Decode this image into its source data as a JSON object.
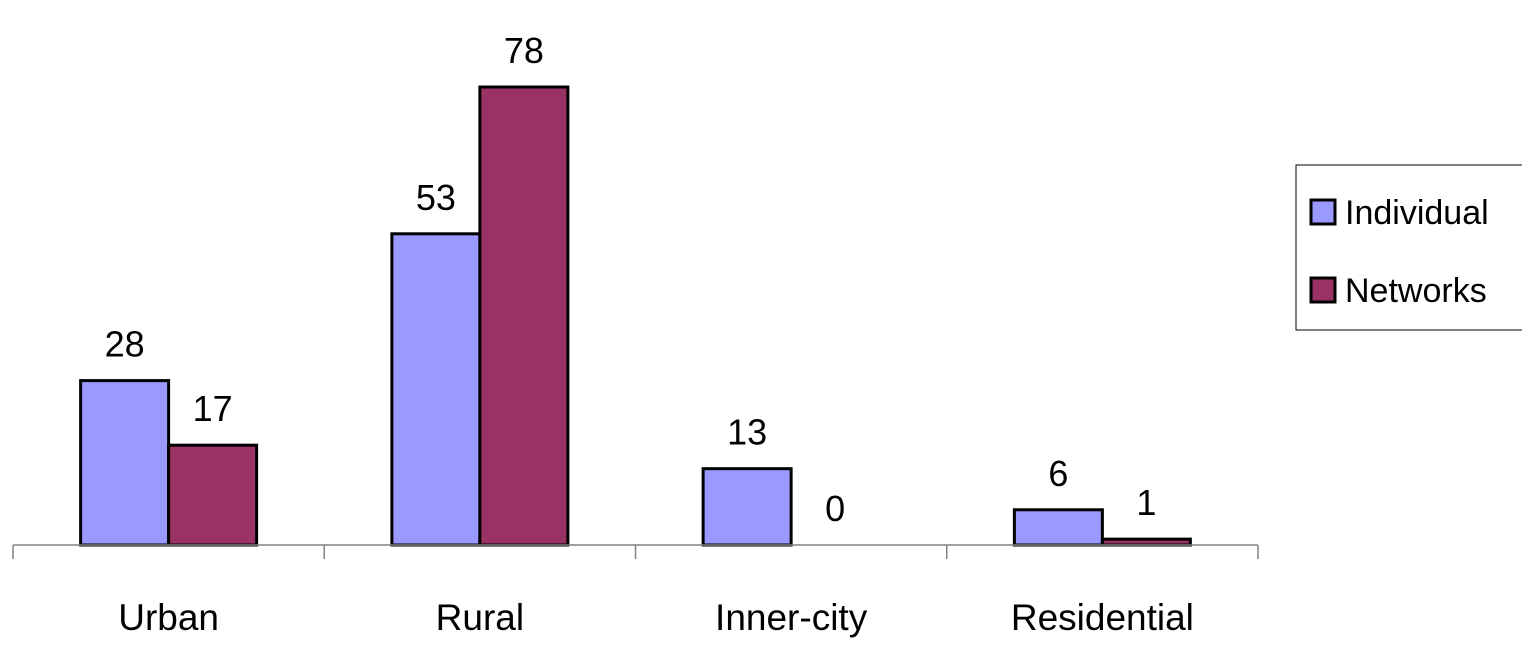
{
  "chart_data": {
    "type": "bar",
    "title": "",
    "xlabel": "",
    "ylabel": "",
    "categories": [
      "Urban",
      "Rural",
      "Inner-city",
      "Residential"
    ],
    "series": [
      {
        "name": "Individual",
        "values": [
          28,
          53,
          13,
          6
        ],
        "color": "#9999ff"
      },
      {
        "name": "Networks",
        "values": [
          17,
          78,
          0,
          1
        ],
        "color": "#993366"
      }
    ],
    "data_labels": [
      "28",
      "53",
      "13",
      "6",
      "17",
      "78",
      "0",
      "1"
    ],
    "ylim": [
      0,
      78
    ],
    "grid": false,
    "legend_position": "right"
  }
}
